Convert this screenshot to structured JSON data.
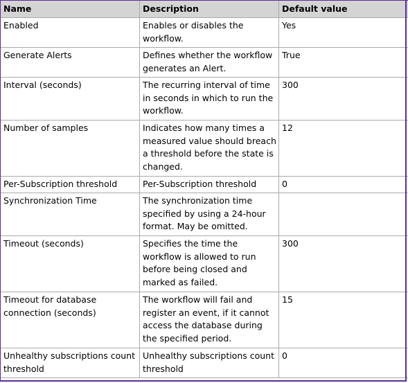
{
  "table": {
    "headers": [
      "Name",
      "Description",
      "Default value"
    ],
    "rows": [
      {
        "name": "Enabled",
        "description": "Enables or disables the workflow.",
        "default": "Yes"
      },
      {
        "name": "Generate Alerts",
        "description": "Defines whether the workflow generates an Alert.",
        "default": "True"
      },
      {
        "name": "Interval (seconds)",
        "description": "The recurring interval of time in seconds in which to run the workflow.",
        "default": "300"
      },
      {
        "name": "Number of samples",
        "description": "Indicates how many times a measured value should breach a threshold before the state is changed.",
        "default": "12"
      },
      {
        "name": "Per-Subscription threshold",
        "description": "Per-Subscription threshold",
        "default": "0"
      },
      {
        "name": "Synchronization Time",
        "description": "The synchronization time specified by using a 24-hour format. May be omitted.",
        "default": ""
      },
      {
        "name": "Timeout (seconds)",
        "description": "Specifies the time the workflow is allowed to run before being closed and marked as failed.",
        "default": "300"
      },
      {
        "name": "Timeout for database connection (seconds)",
        "description": "The workflow will fail and register an event, if it cannot access the database during the specified period.",
        "default": "15"
      },
      {
        "name": "Unhealthy subscriptions count threshold",
        "description": "Unhealthy subscriptions count threshold",
        "default": "0"
      }
    ]
  },
  "colors": {
    "header_background": "#d4d4d4",
    "grid_line": "#a9a9a9",
    "frame_border": "#5b2d91"
  }
}
